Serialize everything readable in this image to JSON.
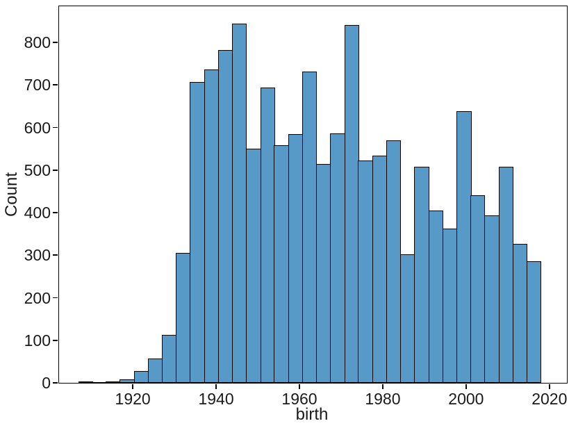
{
  "figure": {
    "background_color": "#ffffff",
    "text_color": "#1a1a1a"
  },
  "chart_data": {
    "type": "bar",
    "subtype": "histogram",
    "title": "",
    "xlabel": "birth",
    "ylabel": "Count",
    "grid": false,
    "legend": null,
    "bar_color": "#5799C7",
    "bar_edge_color": "#000000",
    "axis_color": "#000000",
    "xlim": [
      1902.3,
      2024.2
    ],
    "ylim": [
      0,
      885
    ],
    "x_ticks": [
      1920,
      1940,
      1960,
      1980,
      2000,
      2020
    ],
    "x_tick_labels": [
      "1920",
      "1940",
      "1960",
      "1980",
      "2000",
      "2020"
    ],
    "y_ticks": [
      0,
      100,
      200,
      300,
      400,
      500,
      600,
      700,
      800
    ],
    "y_tick_labels": [
      "0",
      "100",
      "200",
      "300",
      "400",
      "500",
      "600",
      "700",
      "800"
    ],
    "bin_edges": [
      1907.0,
      1910.4,
      1913.7,
      1917.1,
      1920.5,
      1923.8,
      1927.2,
      1930.6,
      1933.9,
      1937.3,
      1940.7,
      1944.0,
      1947.4,
      1950.8,
      1954.1,
      1957.5,
      1960.9,
      1964.2,
      1967.6,
      1971.0,
      1974.3,
      1977.7,
      1981.1,
      1984.4,
      1987.8,
      1991.2,
      1994.5,
      1997.9,
      2001.3,
      2004.6,
      2008.0,
      2011.4,
      2014.7,
      2018.1
    ],
    "counts": [
      3,
      1,
      4,
      9,
      27,
      57,
      112,
      306,
      707,
      736,
      782,
      845,
      551,
      694,
      558,
      584,
      732,
      515,
      586,
      841,
      523,
      534,
      570,
      302,
      508,
      405,
      362,
      638,
      441,
      394,
      508,
      326,
      286
    ]
  }
}
